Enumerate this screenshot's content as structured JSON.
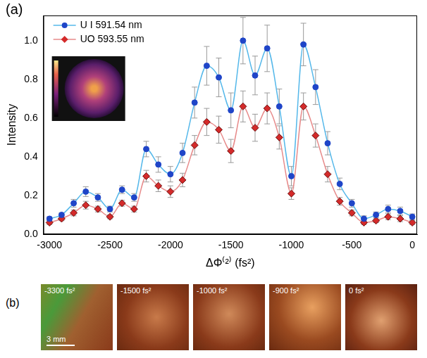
{
  "chart_data": {
    "type": "line",
    "panel_label": "(a)",
    "x_label": "ΔΦ⁽²⁾ (fs²)",
    "y_label": "Intensity",
    "x": [
      -3000,
      -2900,
      -2800,
      -2700,
      -2600,
      -2500,
      -2400,
      -2300,
      -2200,
      -2100,
      -2000,
      -1900,
      -1800,
      -1700,
      -1600,
      -1500,
      -1400,
      -1300,
      -1200,
      -1100,
      -1000,
      -900,
      -800,
      -700,
      -600,
      -500,
      -400,
      -300,
      -200,
      -100,
      0
    ],
    "series": [
      {
        "name": "U I 591.54 nm",
        "color": "#1f45c8",
        "marker": "circle",
        "values": [
          0.08,
          0.1,
          0.16,
          0.22,
          0.19,
          0.13,
          0.23,
          0.19,
          0.44,
          0.36,
          0.31,
          0.42,
          0.68,
          0.87,
          0.81,
          0.64,
          1.0,
          0.82,
          0.96,
          0.66,
          0.3,
          0.98,
          0.76,
          0.47,
          0.26,
          0.16,
          0.08,
          0.1,
          0.13,
          0.12,
          0.09
        ],
        "errors": [
          0.01,
          0.01,
          0.02,
          0.025,
          0.02,
          0.015,
          0.02,
          0.02,
          0.04,
          0.04,
          0.04,
          0.05,
          0.08,
          0.1,
          0.1,
          0.09,
          0.12,
          0.1,
          0.12,
          0.09,
          0.05,
          0.11,
          0.09,
          0.06,
          0.03,
          0.02,
          0.015,
          0.015,
          0.02,
          0.02,
          0.015
        ]
      },
      {
        "name": "UO 593.55 nm",
        "color": "#d42a2a",
        "marker": "diamond",
        "values": [
          0.06,
          0.08,
          0.11,
          0.15,
          0.13,
          0.09,
          0.16,
          0.13,
          0.3,
          0.25,
          0.22,
          0.28,
          0.46,
          0.58,
          0.54,
          0.43,
          0.66,
          0.55,
          0.65,
          0.5,
          0.21,
          0.66,
          0.51,
          0.31,
          0.17,
          0.11,
          0.06,
          0.07,
          0.09,
          0.08,
          0.06
        ],
        "errors": [
          0.01,
          0.01,
          0.015,
          0.02,
          0.015,
          0.01,
          0.015,
          0.015,
          0.03,
          0.03,
          0.03,
          0.035,
          0.05,
          0.07,
          0.07,
          0.06,
          0.08,
          0.07,
          0.08,
          0.06,
          0.03,
          0.07,
          0.06,
          0.04,
          0.02,
          0.015,
          0.01,
          0.01,
          0.015,
          0.015,
          0.01
        ]
      }
    ],
    "xlim": [
      -3050,
      40
    ],
    "xticks": [
      -3000,
      -2500,
      -2000,
      -1500,
      -1000,
      -500,
      0
    ],
    "ylim": [
      0,
      1.13
    ],
    "yticks": [
      {
        "value": 0,
        "label": "0.0"
      },
      {
        "value": 0.2,
        "label": "0.2"
      },
      {
        "value": 0.4,
        "label": "0.4"
      },
      {
        "value": 0.6,
        "label": "0.6"
      },
      {
        "value": 0.8,
        "label": "0.8"
      },
      {
        "value": 1.0,
        "label": "1.0"
      }
    ],
    "grid": false,
    "legend": "upper left"
  },
  "panel_b": {
    "panel_label": "(b)",
    "scale_bar": "3 mm",
    "frames": [
      "-3300 fs²",
      "-1500 fs²",
      "-1000 fs²",
      "-900 fs²",
      "0 fs²"
    ]
  }
}
